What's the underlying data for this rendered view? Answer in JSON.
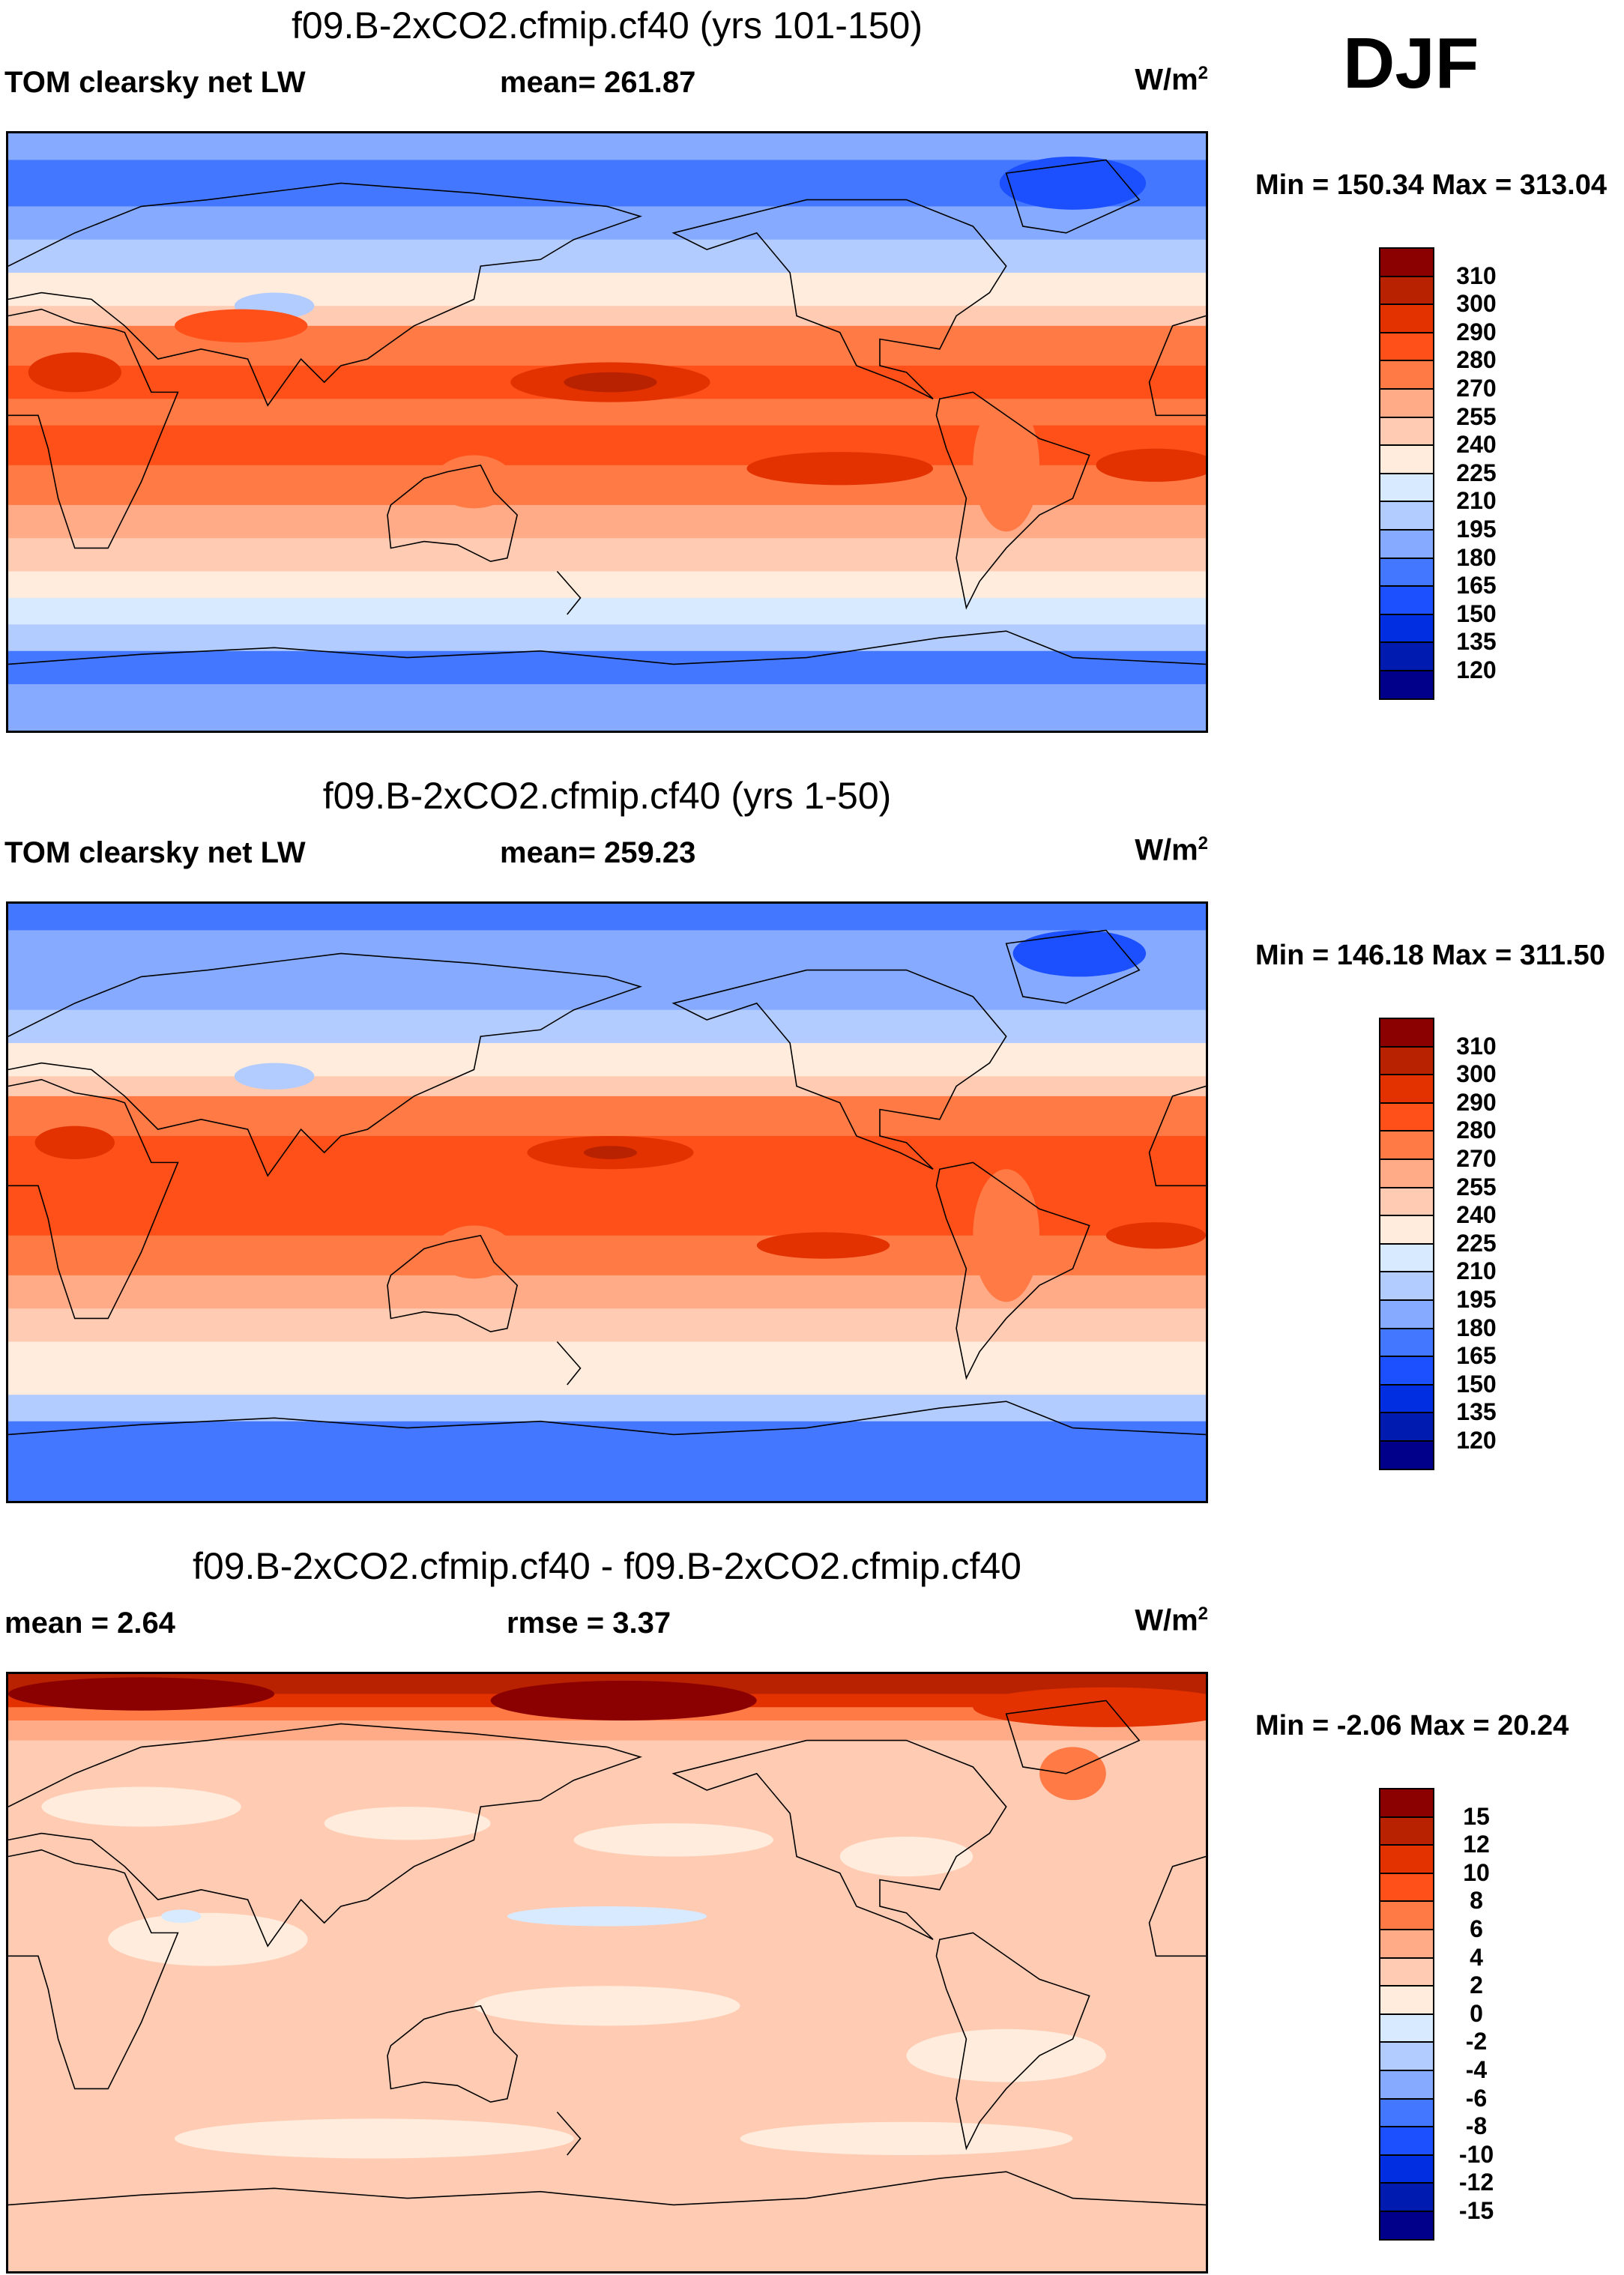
{
  "season": "DJF",
  "units_label": "W/m",
  "units_exp": "2",
  "colors": [
    "#8b0000",
    "#b82200",
    "#e33200",
    "#ff5019",
    "#ff7a45",
    "#ffab87",
    "#ffcbb3",
    "#ffecdc",
    "#d8eaff",
    "#b3ccff",
    "#85aaff",
    "#4477ff",
    "#1c50ff",
    "#002ee0",
    "#001cb0",
    "#00008a"
  ],
  "chart_data": [
    {
      "type": "heatmap",
      "title": "f09.B-2xCO2.cfmip.cf40 (yrs 101-150)",
      "left_label": "TOM clearsky net LW",
      "stat_label": "mean= 261.87",
      "mean": 261.87,
      "min_max_label": "Min = 150.34 Max = 313.04",
      "min": 150.34,
      "max": 313.04,
      "levels": [
        "310",
        "300",
        "290",
        "280",
        "270",
        "255",
        "240",
        "225",
        "210",
        "195",
        "180",
        "165",
        "150",
        "135",
        "120"
      ]
    },
    {
      "type": "heatmap",
      "title": "f09.B-2xCO2.cfmip.cf40 (yrs 1-50)",
      "left_label": "TOM clearsky net LW",
      "stat_label": "mean= 259.23",
      "mean": 259.23,
      "min_max_label": "Min = 146.18 Max = 311.50",
      "min": 146.18,
      "max": 311.5,
      "levels": [
        "310",
        "300",
        "290",
        "280",
        "270",
        "255",
        "240",
        "225",
        "210",
        "195",
        "180",
        "165",
        "150",
        "135",
        "120"
      ]
    },
    {
      "type": "heatmap",
      "title": "f09.B-2xCO2.cfmip.cf40 - f09.B-2xCO2.cfmip.cf40",
      "left_label": "mean =   2.64",
      "stat_label": "rmse =   3.37",
      "mean": 2.64,
      "rmse": 3.37,
      "min_max_label": "Min =  -2.06 Max =  20.24",
      "min": -2.06,
      "max": 20.24,
      "levels": [
        "15",
        "12",
        "10",
        "8",
        "6",
        "4",
        "2",
        "0",
        "-2",
        "-4",
        "-6",
        "-8",
        "-10",
        "-12",
        "-15"
      ]
    }
  ]
}
